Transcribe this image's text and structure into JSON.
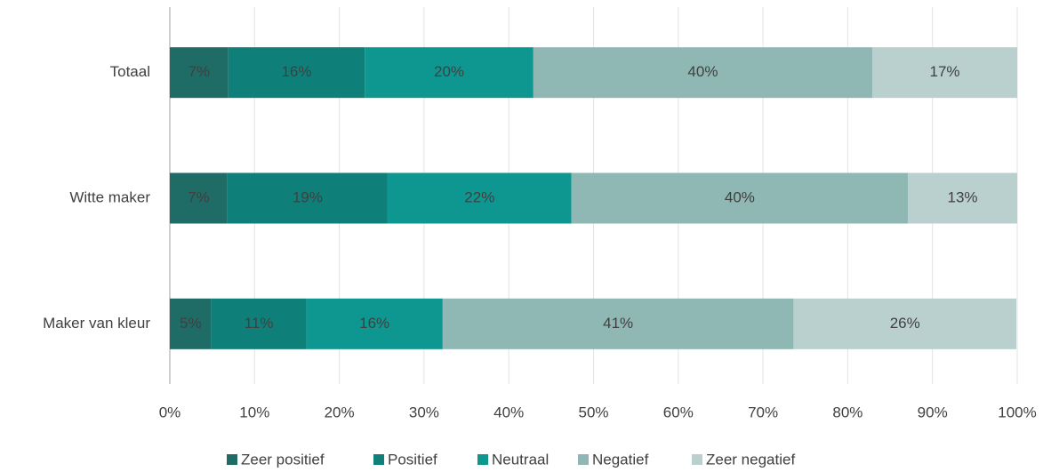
{
  "chart_data": {
    "type": "stacked-bar-horizontal",
    "categories": [
      "Totaal",
      "Witte maker",
      "Maker van kleur"
    ],
    "series": [
      {
        "name": "Zeer positief",
        "color": "#1f6b66",
        "values": [
          6.9,
          6.8,
          4.9
        ],
        "value_labels": [
          "7%",
          "7%",
          "5%"
        ]
      },
      {
        "name": "Positief",
        "color": "#0f7f7a",
        "values": [
          16.1,
          18.9,
          11.2
        ],
        "value_labels": [
          "16%",
          "19%",
          "11%"
        ]
      },
      {
        "name": "Neutraal",
        "color": "#0e9790",
        "values": [
          19.9,
          21.7,
          16.1
        ],
        "value_labels": [
          "20%",
          "22%",
          "16%"
        ]
      },
      {
        "name": "Negatief",
        "color": "#8fb8b4",
        "values": [
          40.0,
          39.7,
          41.4
        ],
        "value_labels": [
          "40%",
          "40%",
          "41%"
        ]
      },
      {
        "name": "Zeer negatief",
        "color": "#b9d0ce",
        "values": [
          17.1,
          12.9,
          26.3
        ],
        "value_labels": [
          "17%",
          "13%",
          "26%"
        ]
      }
    ],
    "xlim": [
      0,
      100
    ],
    "xticks": [
      {
        "value": 0,
        "label": "0%"
      },
      {
        "value": 10,
        "label": "10%"
      },
      {
        "value": 20,
        "label": "20%"
      },
      {
        "value": 30,
        "label": "30%"
      },
      {
        "value": 40,
        "label": "40%"
      },
      {
        "value": 50,
        "label": "50%"
      },
      {
        "value": 60,
        "label": "60%"
      },
      {
        "value": 70,
        "label": "70%"
      },
      {
        "value": 80,
        "label": "80%"
      },
      {
        "value": 90,
        "label": "90%"
      },
      {
        "value": 100,
        "label": "100%"
      }
    ],
    "grid": true,
    "legend": "bottom"
  }
}
